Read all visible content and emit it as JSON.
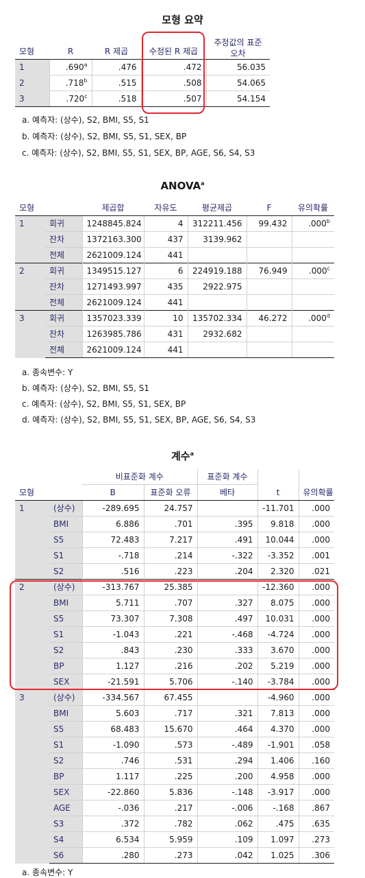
{
  "model_summary": {
    "title": "모형 요약",
    "headers": [
      "모형",
      "R",
      "R 제곱",
      "수정된 R 제곱",
      "추정값의 표준 오차"
    ],
    "rows": [
      {
        "model": "1",
        "r": ".690",
        "r_sup": "a",
        "r2": ".476",
        "adj_r2": ".472",
        "se": "56.035"
      },
      {
        "model": "2",
        "r": ".718",
        "r_sup": "b",
        "r2": ".515",
        "adj_r2": ".508",
        "se": "54.065"
      },
      {
        "model": "3",
        "r": ".720",
        "r_sup": "c",
        "r2": ".518",
        "adj_r2": ".507",
        "se": "54.154"
      }
    ],
    "footnotes": [
      "a. 예측자: (상수), S2, BMI, S5, S1",
      "b. 예측자: (상수), S2, BMI, S5, S1, SEX, BP",
      "c. 예측자: (상수), S2, BMI, S5, S1, SEX, BP, AGE, S6, S4, S3"
    ]
  },
  "anova": {
    "title": "ANOVA",
    "title_sup": "a",
    "headers": [
      "모형",
      "",
      "제곱합",
      "자유도",
      "평균제곱",
      "F",
      "유의확률"
    ],
    "groups": [
      {
        "model": "1",
        "rows": [
          {
            "label": "회귀",
            "ss": "1248845.824",
            "df": "4",
            "ms": "312211.456",
            "f": "99.432",
            "sig": ".000",
            "sig_sup": "b"
          },
          {
            "label": "잔차",
            "ss": "1372163.300",
            "df": "437",
            "ms": "3139.962",
            "f": "",
            "sig": "",
            "sig_sup": ""
          },
          {
            "label": "전체",
            "ss": "2621009.124",
            "df": "441",
            "ms": "",
            "f": "",
            "sig": "",
            "sig_sup": ""
          }
        ]
      },
      {
        "model": "2",
        "rows": [
          {
            "label": "회귀",
            "ss": "1349515.127",
            "df": "6",
            "ms": "224919.188",
            "f": "76.949",
            "sig": ".000",
            "sig_sup": "c"
          },
          {
            "label": "잔차",
            "ss": "1271493.997",
            "df": "435",
            "ms": "2922.975",
            "f": "",
            "sig": "",
            "sig_sup": ""
          },
          {
            "label": "전체",
            "ss": "2621009.124",
            "df": "441",
            "ms": "",
            "f": "",
            "sig": "",
            "sig_sup": ""
          }
        ]
      },
      {
        "model": "3",
        "rows": [
          {
            "label": "회귀",
            "ss": "1357023.339",
            "df": "10",
            "ms": "135702.334",
            "f": "46.272",
            "sig": ".000",
            "sig_sup": "d"
          },
          {
            "label": "잔차",
            "ss": "1263985.786",
            "df": "431",
            "ms": "2932.682",
            "f": "",
            "sig": "",
            "sig_sup": ""
          },
          {
            "label": "전체",
            "ss": "2621009.124",
            "df": "441",
            "ms": "",
            "f": "",
            "sig": "",
            "sig_sup": ""
          }
        ]
      }
    ],
    "footnotes": [
      "a. 종속변수: Y",
      "b. 예측자: (상수), S2, BMI, S5, S1",
      "c. 예측자: (상수), S2, BMI, S5, S1, SEX, BP",
      "d. 예측자: (상수), S2, BMI, S5, S1, SEX, BP, AGE, S6, S4, S3"
    ]
  },
  "coefficients": {
    "title": "계수",
    "title_sup": "a",
    "group_headers": {
      "unstd": "비표준화 계수",
      "std": "표준화 계수"
    },
    "headers": [
      "모형",
      "",
      "B",
      "표준화 오류",
      "베타",
      "t",
      "유의확률"
    ],
    "groups": [
      {
        "model": "1",
        "rows": [
          {
            "label": "(상수)",
            "b": "-289.695",
            "se": "24.757",
            "beta": "",
            "t": "-11.701",
            "sig": ".000"
          },
          {
            "label": "BMI",
            "b": "6.886",
            "se": ".701",
            "beta": ".395",
            "t": "9.818",
            "sig": ".000"
          },
          {
            "label": "S5",
            "b": "72.483",
            "se": "7.217",
            "beta": ".491",
            "t": "10.044",
            "sig": ".000"
          },
          {
            "label": "S1",
            "b": "-.718",
            "se": ".214",
            "beta": "-.322",
            "t": "-3.352",
            "sig": ".001"
          },
          {
            "label": "S2",
            "b": ".516",
            "se": ".223",
            "beta": ".204",
            "t": "2.320",
            "sig": ".021"
          }
        ]
      },
      {
        "model": "2",
        "rows": [
          {
            "label": "(상수)",
            "b": "-313.767",
            "se": "25.385",
            "beta": "",
            "t": "-12.360",
            "sig": ".000"
          },
          {
            "label": "BMI",
            "b": "5.711",
            "se": ".707",
            "beta": ".327",
            "t": "8.075",
            "sig": ".000"
          },
          {
            "label": "S5",
            "b": "73.307",
            "se": "7.308",
            "beta": ".497",
            "t": "10.031",
            "sig": ".000"
          },
          {
            "label": "S1",
            "b": "-1.043",
            "se": ".221",
            "beta": "-.468",
            "t": "-4.724",
            "sig": ".000"
          },
          {
            "label": "S2",
            "b": ".843",
            "se": ".230",
            "beta": ".333",
            "t": "3.670",
            "sig": ".000"
          },
          {
            "label": "BP",
            "b": "1.127",
            "se": ".216",
            "beta": ".202",
            "t": "5.219",
            "sig": ".000"
          },
          {
            "label": "SEX",
            "b": "-21.591",
            "se": "5.706",
            "beta": "-.140",
            "t": "-3.784",
            "sig": ".000"
          }
        ]
      },
      {
        "model": "3",
        "rows": [
          {
            "label": "(상수)",
            "b": "-334.567",
            "se": "67.455",
            "beta": "",
            "t": "-4.960",
            "sig": ".000"
          },
          {
            "label": "BMI",
            "b": "5.603",
            "se": ".717",
            "beta": ".321",
            "t": "7.813",
            "sig": ".000"
          },
          {
            "label": "S5",
            "b": "68.483",
            "se": "15.670",
            "beta": ".464",
            "t": "4.370",
            "sig": ".000"
          },
          {
            "label": "S1",
            "b": "-1.090",
            "se": ".573",
            "beta": "-.489",
            "t": "-1.901",
            "sig": ".058"
          },
          {
            "label": "S2",
            "b": ".746",
            "se": ".531",
            "beta": ".294",
            "t": "1.406",
            "sig": ".160"
          },
          {
            "label": "BP",
            "b": "1.117",
            "se": ".225",
            "beta": ".200",
            "t": "4.958",
            "sig": ".000"
          },
          {
            "label": "SEX",
            "b": "-22.860",
            "se": "5.836",
            "beta": "-.148",
            "t": "-3.917",
            "sig": ".000"
          },
          {
            "label": "AGE",
            "b": "-.036",
            "se": ".217",
            "beta": "-.006",
            "t": "-.168",
            "sig": ".867"
          },
          {
            "label": "S3",
            "b": ".372",
            "se": ".782",
            "beta": ".062",
            "t": ".475",
            "sig": ".635"
          },
          {
            "label": "S4",
            "b": "6.534",
            "se": "5.959",
            "beta": ".109",
            "t": "1.097",
            "sig": ".273"
          },
          {
            "label": "S6",
            "b": ".280",
            "se": ".273",
            "beta": ".042",
            "t": "1.025",
            "sig": ".306"
          }
        ]
      }
    ],
    "footnotes": [
      "a. 종속변수: Y"
    ]
  },
  "highlight_color": "#e0282e"
}
